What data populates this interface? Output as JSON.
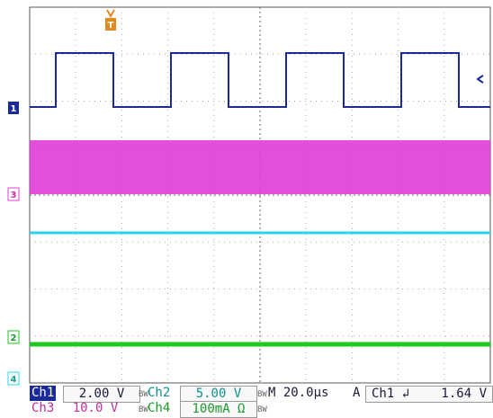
{
  "channels": {
    "ch1": {
      "marker": "1",
      "color": "#1a2a9a"
    },
    "ch2": {
      "marker": "2",
      "color": "#1ec81e"
    },
    "ch3": {
      "marker": "3",
      "color": "#e040d8"
    },
    "ch4": {
      "marker": "4",
      "color": "#28d4e8"
    }
  },
  "trigger_marker": "T",
  "readout": {
    "ch1_label": "Ch1",
    "ch1_scale": "2.00 V",
    "bw1": "BW",
    "ch2_label": "Ch2",
    "ch2_scale": "5.00 V",
    "bw2": "BW",
    "timebase": "M 20.0µs",
    "trigger_mode": "A",
    "trigger_source": "Ch1",
    "trigger_slope": "↲",
    "trigger_level": "1.64 V",
    "ch3_label": "Ch3",
    "ch3_scale": "10.0 V",
    "bw3": "BW",
    "ch4_label": "Ch4",
    "ch4_scale": "100mA Ω",
    "bw4": "BW"
  }
}
